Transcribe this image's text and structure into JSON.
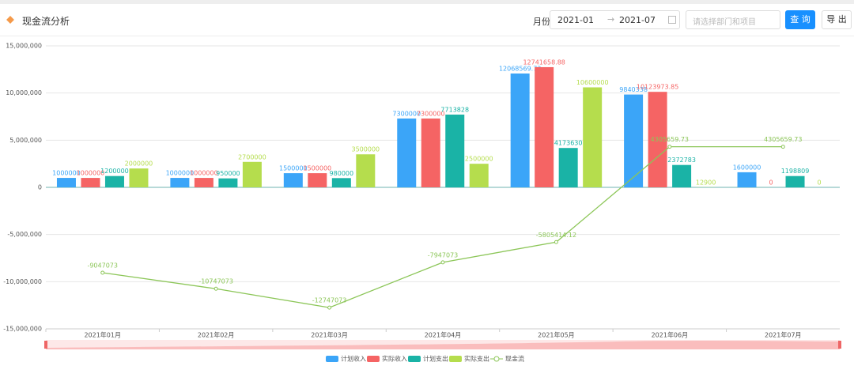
{
  "header": {
    "title": "现金流分析",
    "month_label": "月份",
    "date_start": "2021-01",
    "date_end": "2021-07",
    "filter_placeholder": "请选择部门和项目",
    "query_button": "查 询",
    "export_button": "导 出"
  },
  "chart_data": {
    "type": "bar",
    "categories": [
      "2021年01月",
      "2021年02月",
      "2021年03月",
      "2021年04月",
      "2021年05月",
      "2021年06月",
      "2021年07月"
    ],
    "series": [
      {
        "name": "计划收入",
        "type": "bar",
        "color": "#3ba5f8",
        "values": [
          1000000,
          1000000,
          1500000,
          7300000,
          12068569.73,
          9840338,
          1600000
        ]
      },
      {
        "name": "实际收入",
        "type": "bar",
        "color": "#f56464",
        "values": [
          1000000,
          1000000,
          1500000,
          7300000,
          12741658.88,
          10123973.85,
          0
        ]
      },
      {
        "name": "计划支出",
        "type": "bar",
        "color": "#1ab3a6",
        "values": [
          1200000,
          950000,
          980000,
          7713828,
          4173630,
          2372783,
          1198809
        ]
      },
      {
        "name": "实际支出",
        "type": "bar",
        "color": "#b5dd4d",
        "values": [
          2000000,
          2700000,
          3500000,
          2500000,
          10600000,
          12900,
          0
        ]
      },
      {
        "name": "现金流",
        "type": "line",
        "color": "#8cc658",
        "values": [
          -9047073,
          -10747073,
          -12747073,
          -7947073,
          -5805414.12,
          4305659.73,
          4305659.73
        ]
      }
    ],
    "ylim": [
      -15000000,
      15000000
    ],
    "yticks": [
      {
        "value": -15000000,
        "label": "-15,000,000"
      },
      {
        "value": -10000000,
        "label": "-10,000,000"
      },
      {
        "value": -5000000,
        "label": "-5,000,000"
      },
      0,
      {
        "value": 5000000,
        "label": "5,000,000"
      },
      {
        "value": 10000000,
        "label": "10,000,000"
      },
      {
        "value": 15000000,
        "label": "15,000,000"
      }
    ],
    "grid": true,
    "legend": "bottom"
  }
}
